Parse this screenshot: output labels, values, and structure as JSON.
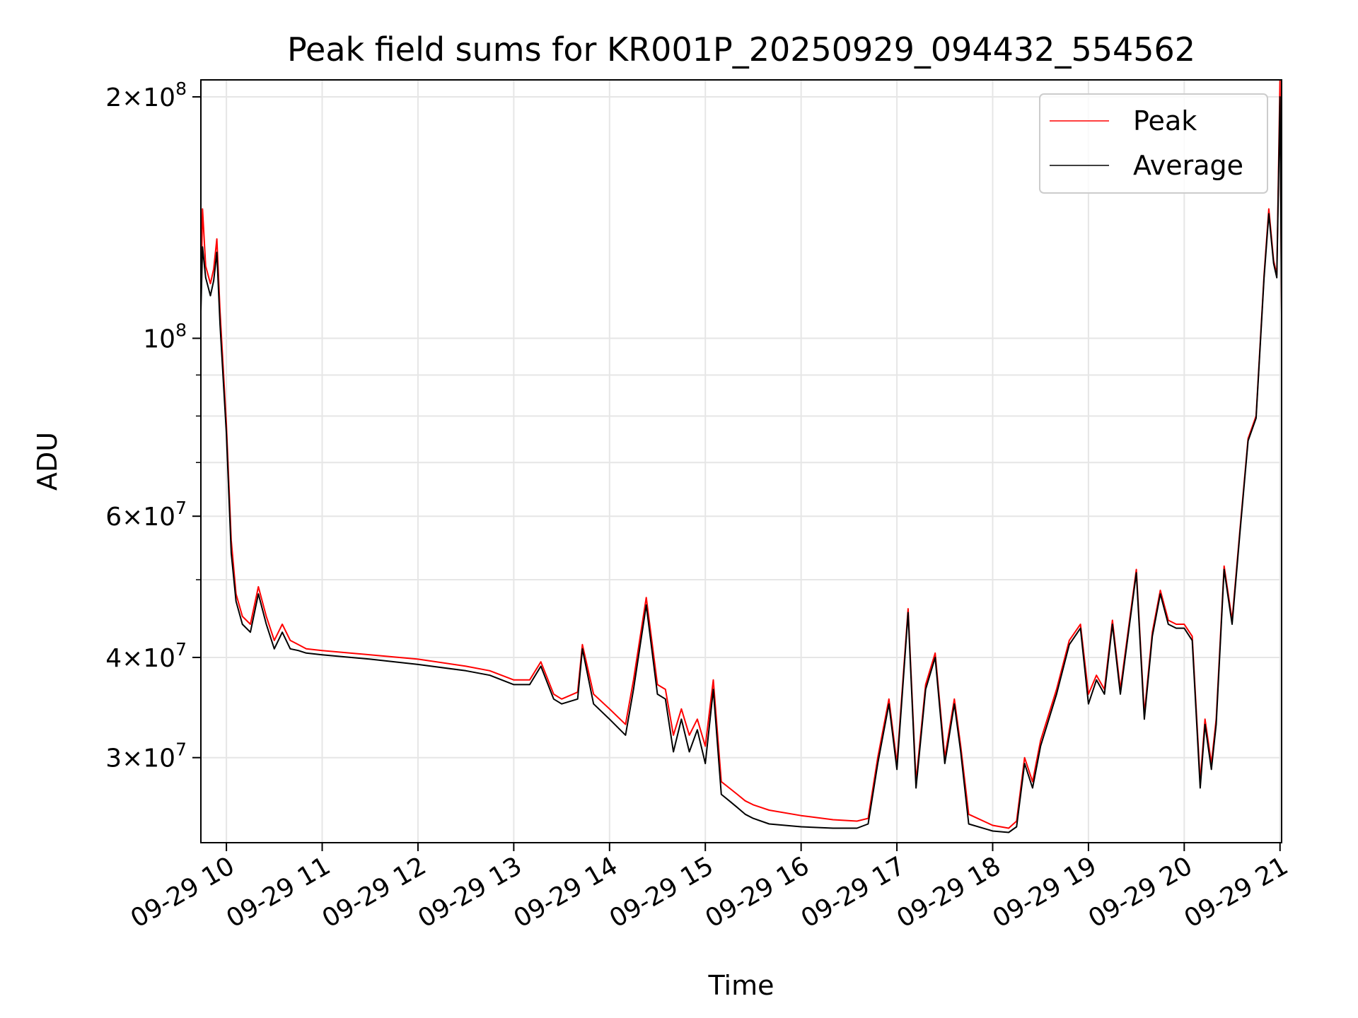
{
  "chart_data": {
    "type": "line",
    "title": "Peak field sums for KR001P_20250929_094432_554562",
    "xlabel": "Time",
    "ylabel": "ADU",
    "y_scale": "log",
    "ylim": [
      23500000,
      210000000
    ],
    "xlim": [
      "2025-09-29 09:44",
      "2025-09-29 21:01"
    ],
    "grid": true,
    "legend_position": "top-right",
    "x_ticks": [
      {
        "time": "2025-09-29 10:00",
        "label": "09-29 10"
      },
      {
        "time": "2025-09-29 11:00",
        "label": "09-29 11"
      },
      {
        "time": "2025-09-29 12:00",
        "label": "09-29 12"
      },
      {
        "time": "2025-09-29 13:00",
        "label": "09-29 13"
      },
      {
        "time": "2025-09-29 14:00",
        "label": "09-29 14"
      },
      {
        "time": "2025-09-29 15:00",
        "label": "09-29 15"
      },
      {
        "time": "2025-09-29 16:00",
        "label": "09-29 16"
      },
      {
        "time": "2025-09-29 17:00",
        "label": "09-29 17"
      },
      {
        "time": "2025-09-29 18:00",
        "label": "09-29 18"
      },
      {
        "time": "2025-09-29 19:00",
        "label": "09-29 19"
      },
      {
        "time": "2025-09-29 20:00",
        "label": "09-29 20"
      },
      {
        "time": "2025-09-29 21:00",
        "label": "09-29 21"
      }
    ],
    "y_ticks": [
      {
        "value": 30000000,
        "mantissa": "3",
        "exponent": "7"
      },
      {
        "value": 40000000,
        "mantissa": "4",
        "exponent": "7"
      },
      {
        "value": 60000000,
        "mantissa": "6",
        "exponent": "7"
      },
      {
        "value": 100000000,
        "mantissa": "",
        "exponent": "8"
      },
      {
        "value": 200000000,
        "mantissa": "2",
        "exponent": "8"
      }
    ],
    "y_minor_ticks": [
      50000000,
      70000000,
      80000000,
      90000000
    ],
    "series": [
      {
        "name": "Peak",
        "color": "#ff0000",
        "x": [
          "2025-09-29 09:44",
          "2025-09-29 09:45",
          "2025-09-29 09:47",
          "2025-09-29 09:50",
          "2025-09-29 09:52",
          "2025-09-29 09:54",
          "2025-09-29 09:56",
          "2025-09-29 10:00",
          "2025-09-29 10:03",
          "2025-09-29 10:06",
          "2025-09-29 10:10",
          "2025-09-29 10:15",
          "2025-09-29 10:20",
          "2025-09-29 10:25",
          "2025-09-29 10:30",
          "2025-09-29 10:35",
          "2025-09-29 10:40",
          "2025-09-29 10:45",
          "2025-09-29 10:50",
          "2025-09-29 11:00",
          "2025-09-29 11:30",
          "2025-09-29 12:00",
          "2025-09-29 12:30",
          "2025-09-29 12:45",
          "2025-09-29 13:00",
          "2025-09-29 13:10",
          "2025-09-29 13:17",
          "2025-09-29 13:25",
          "2025-09-29 13:30",
          "2025-09-29 13:40",
          "2025-09-29 13:43",
          "2025-09-29 13:50",
          "2025-09-29 14:00",
          "2025-09-29 14:10",
          "2025-09-29 14:15",
          "2025-09-29 14:23",
          "2025-09-29 14:30",
          "2025-09-29 14:35",
          "2025-09-29 14:40",
          "2025-09-29 14:45",
          "2025-09-29 14:50",
          "2025-09-29 14:55",
          "2025-09-29 15:00",
          "2025-09-29 15:05",
          "2025-09-29 15:10",
          "2025-09-29 15:15",
          "2025-09-29 15:20",
          "2025-09-29 15:25",
          "2025-09-29 15:30",
          "2025-09-29 15:40",
          "2025-09-29 16:00",
          "2025-09-29 16:20",
          "2025-09-29 16:35",
          "2025-09-29 16:42",
          "2025-09-29 16:48",
          "2025-09-29 16:55",
          "2025-09-29 17:00",
          "2025-09-29 17:07",
          "2025-09-29 17:12",
          "2025-09-29 17:18",
          "2025-09-29 17:24",
          "2025-09-29 17:30",
          "2025-09-29 17:36",
          "2025-09-29 17:40",
          "2025-09-29 17:45",
          "2025-09-29 18:00",
          "2025-09-29 18:10",
          "2025-09-29 18:15",
          "2025-09-29 18:20",
          "2025-09-29 18:25",
          "2025-09-29 18:30",
          "2025-09-29 18:40",
          "2025-09-29 18:48",
          "2025-09-29 18:55",
          "2025-09-29 19:00",
          "2025-09-29 19:05",
          "2025-09-29 19:10",
          "2025-09-29 19:15",
          "2025-09-29 19:20",
          "2025-09-29 19:30",
          "2025-09-29 19:35",
          "2025-09-29 19:40",
          "2025-09-29 19:45",
          "2025-09-29 19:50",
          "2025-09-29 19:55",
          "2025-09-29 20:00",
          "2025-09-29 20:05",
          "2025-09-29 20:10",
          "2025-09-29 20:13",
          "2025-09-29 20:17",
          "2025-09-29 20:20",
          "2025-09-29 20:25",
          "2025-09-29 20:30",
          "2025-09-29 20:35",
          "2025-09-29 20:40",
          "2025-09-29 20:45",
          "2025-09-29 20:50",
          "2025-09-29 20:53",
          "2025-09-29 20:56",
          "2025-09-29 20:58",
          "2025-09-29 21:00",
          "2025-09-29 21:01"
        ],
        "y": [
          111000000,
          145000000,
          123000000,
          117000000,
          122000000,
          133000000,
          108000000,
          78000000,
          56000000,
          48000000,
          45000000,
          44000000,
          49000000,
          45000000,
          42000000,
          44000000,
          42000000,
          41500000,
          41000000,
          40800000,
          40300000,
          39800000,
          39000000,
          38500000,
          37500000,
          37500000,
          39500000,
          36000000,
          35500000,
          36200000,
          41500000,
          36000000,
          34500000,
          33000000,
          37500000,
          47500000,
          37000000,
          36500000,
          32000000,
          34500000,
          32000000,
          33500000,
          31000000,
          37500000,
          28000000,
          27500000,
          27000000,
          26500000,
          26200000,
          25800000,
          25400000,
          25100000,
          25000000,
          25200000,
          30000000,
          35500000,
          29500000,
          46000000,
          28000000,
          37000000,
          40500000,
          30000000,
          35500000,
          31000000,
          25500000,
          24700000,
          24500000,
          25000000,
          30000000,
          28000000,
          31500000,
          36500000,
          42000000,
          44000000,
          36000000,
          38000000,
          36500000,
          44500000,
          36500000,
          51500000,
          34000000,
          43000000,
          48500000,
          44500000,
          44000000,
          44000000,
          42500000,
          28000000,
          33500000,
          29500000,
          33500000,
          52000000,
          44500000,
          58000000,
          75000000,
          80000000,
          120000000,
          145000000,
          125000000,
          120000000,
          210000000,
          108000000
        ]
      },
      {
        "name": "Average",
        "color": "#000000",
        "x": [
          "2025-09-29 09:44",
          "2025-09-29 09:45",
          "2025-09-29 09:47",
          "2025-09-29 09:50",
          "2025-09-29 09:52",
          "2025-09-29 09:54",
          "2025-09-29 09:56",
          "2025-09-29 10:00",
          "2025-09-29 10:03",
          "2025-09-29 10:06",
          "2025-09-29 10:10",
          "2025-09-29 10:15",
          "2025-09-29 10:20",
          "2025-09-29 10:25",
          "2025-09-29 10:30",
          "2025-09-29 10:35",
          "2025-09-29 10:40",
          "2025-09-29 10:45",
          "2025-09-29 10:50",
          "2025-09-29 11:00",
          "2025-09-29 11:30",
          "2025-09-29 12:00",
          "2025-09-29 12:30",
          "2025-09-29 12:45",
          "2025-09-29 13:00",
          "2025-09-29 13:10",
          "2025-09-29 13:17",
          "2025-09-29 13:25",
          "2025-09-29 13:30",
          "2025-09-29 13:40",
          "2025-09-29 13:43",
          "2025-09-29 13:50",
          "2025-09-29 14:00",
          "2025-09-29 14:10",
          "2025-09-29 14:15",
          "2025-09-29 14:23",
          "2025-09-29 14:30",
          "2025-09-29 14:35",
          "2025-09-29 14:40",
          "2025-09-29 14:45",
          "2025-09-29 14:50",
          "2025-09-29 14:55",
          "2025-09-29 15:00",
          "2025-09-29 15:05",
          "2025-09-29 15:10",
          "2025-09-29 15:15",
          "2025-09-29 15:20",
          "2025-09-29 15:25",
          "2025-09-29 15:30",
          "2025-09-29 15:40",
          "2025-09-29 16:00",
          "2025-09-29 16:20",
          "2025-09-29 16:35",
          "2025-09-29 16:42",
          "2025-09-29 16:48",
          "2025-09-29 16:55",
          "2025-09-29 17:00",
          "2025-09-29 17:07",
          "2025-09-29 17:12",
          "2025-09-29 17:18",
          "2025-09-29 17:24",
          "2025-09-29 17:30",
          "2025-09-29 17:36",
          "2025-09-29 17:40",
          "2025-09-29 17:45",
          "2025-09-29 18:00",
          "2025-09-29 18:10",
          "2025-09-29 18:15",
          "2025-09-29 18:20",
          "2025-09-29 18:25",
          "2025-09-29 18:30",
          "2025-09-29 18:40",
          "2025-09-29 18:48",
          "2025-09-29 18:55",
          "2025-09-29 19:00",
          "2025-09-29 19:05",
          "2025-09-29 19:10",
          "2025-09-29 19:15",
          "2025-09-29 19:20",
          "2025-09-29 19:30",
          "2025-09-29 19:35",
          "2025-09-29 19:40",
          "2025-09-29 19:45",
          "2025-09-29 19:50",
          "2025-09-29 19:55",
          "2025-09-29 20:00",
          "2025-09-29 20:05",
          "2025-09-29 20:10",
          "2025-09-29 20:13",
          "2025-09-29 20:17",
          "2025-09-29 20:20",
          "2025-09-29 20:25",
          "2025-09-29 20:30",
          "2025-09-29 20:35",
          "2025-09-29 20:40",
          "2025-09-29 20:45",
          "2025-09-29 20:50",
          "2025-09-29 20:53",
          "2025-09-29 20:56",
          "2025-09-29 20:58",
          "2025-09-29 21:00",
          "2025-09-29 21:01"
        ],
        "y": [
          108000000,
          130000000,
          119000000,
          113000000,
          118000000,
          128000000,
          104000000,
          76000000,
          54000000,
          47000000,
          44000000,
          43000000,
          48000000,
          44000000,
          41000000,
          43000000,
          41000000,
          40800000,
          40500000,
          40300000,
          39800000,
          39200000,
          38500000,
          38000000,
          37000000,
          37000000,
          39000000,
          35500000,
          35000000,
          35500000,
          41000000,
          35000000,
          33500000,
          32000000,
          36500000,
          46500000,
          36000000,
          35500000,
          30500000,
          33500000,
          30500000,
          32500000,
          29500000,
          36500000,
          27000000,
          26500000,
          26000000,
          25500000,
          25200000,
          24800000,
          24600000,
          24500000,
          24500000,
          24800000,
          29500000,
          35000000,
          29000000,
          45500000,
          27500000,
          36500000,
          40000000,
          29500000,
          35000000,
          30500000,
          24800000,
          24300000,
          24200000,
          24600000,
          29500000,
          27500000,
          31000000,
          36000000,
          41500000,
          43500000,
          35000000,
          37500000,
          36000000,
          44000000,
          36000000,
          51000000,
          33500000,
          42500000,
          48000000,
          44000000,
          43500000,
          43500000,
          42000000,
          27500000,
          33000000,
          29000000,
          33000000,
          51500000,
          44000000,
          57500000,
          74500000,
          79500000,
          119000000,
          143000000,
          124000000,
          119000000,
          200000000,
          107000000
        ]
      }
    ]
  }
}
